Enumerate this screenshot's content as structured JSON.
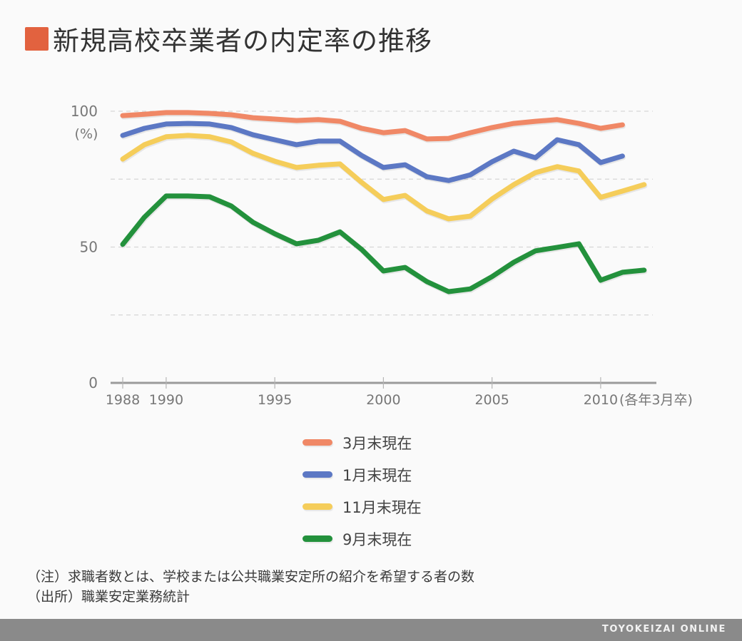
{
  "header": {
    "title": "新規高校卒業者の内定率の推移",
    "accent_color": "#e2623f"
  },
  "chart_data": {
    "type": "line",
    "title": "新規高校卒業者の内定率の推移",
    "ylabel": "(%)",
    "xlabel": "(各年3月卒)",
    "ylim": [
      0,
      100
    ],
    "xlim": [
      1987.5,
      2012.5
    ],
    "y_ticks": [
      0,
      50,
      100
    ],
    "y_tick_labels": [
      "0",
      "50",
      "100"
    ],
    "y_gridlines": [
      25,
      50,
      75,
      100
    ],
    "x_ticks": [
      1988,
      1990,
      1995,
      2000,
      2005,
      2010
    ],
    "x_tick_labels": [
      "1988",
      "1990",
      "1995",
      "2000",
      "2005",
      "2010"
    ],
    "grid": true,
    "legend_position": "bottom",
    "series": [
      {
        "name": "3月末現在",
        "color": "#f08866",
        "x": [
          1988,
          1989,
          1990,
          1991,
          1992,
          1993,
          1994,
          1995,
          1996,
          1997,
          1998,
          1999,
          2000,
          2001,
          2002,
          2003,
          2004,
          2005,
          2006,
          2007,
          2008,
          2009,
          2010,
          2011
        ],
        "values": [
          98.4,
          98.9,
          99.5,
          99.5,
          99.2,
          98.7,
          97.6,
          97.1,
          96.6,
          96.9,
          96.3,
          93.7,
          92.1,
          92.9,
          89.8,
          90.0,
          92.1,
          94.0,
          95.5,
          96.3,
          96.9,
          95.5,
          93.7,
          95.0
        ]
      },
      {
        "name": "1月末現在",
        "color": "#5c78c4",
        "x": [
          1988,
          1989,
          1990,
          1991,
          1992,
          1993,
          1994,
          1995,
          1996,
          1997,
          1998,
          1999,
          2000,
          2001,
          2002,
          2003,
          2004,
          2005,
          2006,
          2007,
          2008,
          2009,
          2010,
          2011
        ],
        "values": [
          91.1,
          93.7,
          95.3,
          95.5,
          95.3,
          94.0,
          91.3,
          89.5,
          87.7,
          89.0,
          89.0,
          83.7,
          79.3,
          80.3,
          75.9,
          74.5,
          76.6,
          81.4,
          85.3,
          82.9,
          89.5,
          87.7,
          81.1,
          83.5
        ]
      },
      {
        "name": "11月末現在",
        "color": "#f5cd5a",
        "x": [
          1988,
          1989,
          1990,
          1991,
          1992,
          1993,
          1994,
          1995,
          1996,
          1997,
          1998,
          1999,
          2000,
          2001,
          2002,
          2003,
          2004,
          2005,
          2006,
          2007,
          2008,
          2009,
          2010,
          2011,
          2012
        ],
        "values": [
          82.4,
          87.7,
          90.6,
          91.1,
          90.6,
          88.7,
          84.5,
          81.6,
          79.3,
          80.1,
          80.6,
          73.8,
          67.5,
          69.0,
          63.3,
          60.4,
          61.4,
          67.7,
          73.0,
          77.4,
          79.6,
          78.0,
          68.3,
          70.6,
          73.0
        ]
      },
      {
        "name": "9月末現在",
        "color": "#23913c",
        "x": [
          1988,
          1989,
          1990,
          1991,
          1992,
          1993,
          1994,
          1995,
          1996,
          1997,
          1998,
          1999,
          2000,
          2001,
          2002,
          2003,
          2004,
          2005,
          2006,
          2007,
          2008,
          2009,
          2010,
          2011,
          2012
        ],
        "values": [
          51.0,
          61.0,
          68.8,
          68.8,
          68.5,
          65.1,
          59.1,
          54.9,
          51.2,
          52.5,
          55.6,
          49.1,
          41.2,
          42.5,
          37.3,
          33.6,
          34.6,
          39.1,
          44.4,
          48.6,
          49.9,
          51.2,
          37.8,
          40.7,
          41.5
        ]
      }
    ]
  },
  "notes": {
    "note": "（注）求職者数とは、学校または公共職業安定所の紹介を希望する者の数",
    "source": "（出所）職業安定業務統計"
  },
  "footer": {
    "brand": "TOYOKEIZAI ONLINE"
  }
}
